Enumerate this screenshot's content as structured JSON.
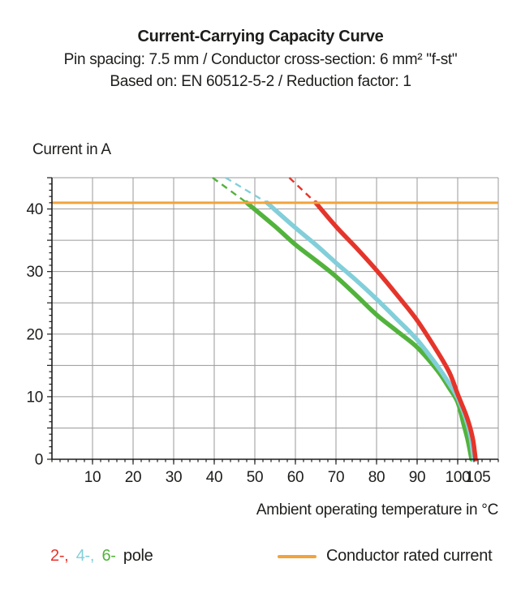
{
  "chart_data": {
    "type": "line",
    "title": "Current-Carrying Capacity Curve",
    "subtitle_spec": "Pin spacing: 7.5 mm / Conductor cross-section: 6 mm² \"f-st\"",
    "subtitle_standard": "Based on: EN 60512-5-2 / Reduction factor: 1",
    "ylabel": "Current in A",
    "xlabel": "Ambient operating temperature in °C",
    "xlim": [
      0,
      110
    ],
    "ylim": [
      0,
      45
    ],
    "x_tick_labels": [
      10,
      20,
      30,
      40,
      50,
      60,
      70,
      80,
      90,
      100,
      105
    ],
    "y_tick_labels": [
      0,
      10,
      20,
      30,
      40
    ],
    "x_grid_step": 10,
    "x_minor_step": 2,
    "y_grid_step": 5,
    "y_minor_step": 1,
    "grid": true,
    "grid_color": "#9A9A9A",
    "axis_color": "#1d1d1b",
    "text_color": "#1d1d1b",
    "rated_current_line": {
      "value": 41,
      "color": "#F2A33C",
      "label": "Conductor rated current"
    },
    "series": [
      {
        "name": "6-pole",
        "color": "#52B33C",
        "dashed": [
          [
            39.6,
            45
          ],
          [
            48,
            41
          ]
        ],
        "solid": [
          [
            48,
            41
          ],
          [
            55,
            37.2
          ],
          [
            60,
            34.3
          ],
          [
            65,
            31.8
          ],
          [
            70,
            29.2
          ],
          [
            75,
            26.2
          ],
          [
            80,
            23.1
          ],
          [
            85,
            20.5
          ],
          [
            90,
            17.9
          ],
          [
            95,
            14.2
          ],
          [
            98,
            11.3
          ],
          [
            100,
            9.1
          ],
          [
            101.5,
            5.5
          ],
          [
            102.5,
            3
          ],
          [
            103.4,
            0
          ]
        ]
      },
      {
        "name": "4-pole",
        "color": "#82CFDA",
        "dashed": [
          [
            42.8,
            45
          ],
          [
            53,
            41
          ]
        ],
        "solid": [
          [
            53,
            41
          ],
          [
            60,
            37
          ],
          [
            65,
            34.3
          ],
          [
            70,
            31.4
          ],
          [
            75,
            28.6
          ],
          [
            80,
            25.6
          ],
          [
            85,
            22.4
          ],
          [
            90,
            19.1
          ],
          [
            95,
            14.9
          ],
          [
            98,
            12
          ],
          [
            100,
            9.8
          ],
          [
            102,
            6.5
          ],
          [
            103.2,
            3.5
          ],
          [
            103.9,
            0
          ]
        ]
      },
      {
        "name": "2-pole",
        "color": "#E5352B",
        "dashed": [
          [
            58.5,
            45
          ],
          [
            65,
            41
          ]
        ],
        "solid": [
          [
            65,
            41
          ],
          [
            70,
            37.2
          ],
          [
            75,
            33.8
          ],
          [
            80,
            30.2
          ],
          [
            85,
            26.3
          ],
          [
            90,
            22.2
          ],
          [
            95,
            17.2
          ],
          [
            98,
            13.8
          ],
          [
            100,
            10.4
          ],
          [
            102,
            7.2
          ],
          [
            103,
            5.2
          ],
          [
            103.8,
            3
          ],
          [
            104.4,
            0
          ]
        ]
      }
    ],
    "legend": {
      "poles": [
        {
          "label": "2-,",
          "color": "#E5352B"
        },
        {
          "label": "4-,",
          "color": "#82CFDA"
        },
        {
          "label": "6-",
          "color": "#52B33C"
        }
      ],
      "poles_suffix": "pole",
      "rated_label": "Conductor rated current"
    }
  }
}
